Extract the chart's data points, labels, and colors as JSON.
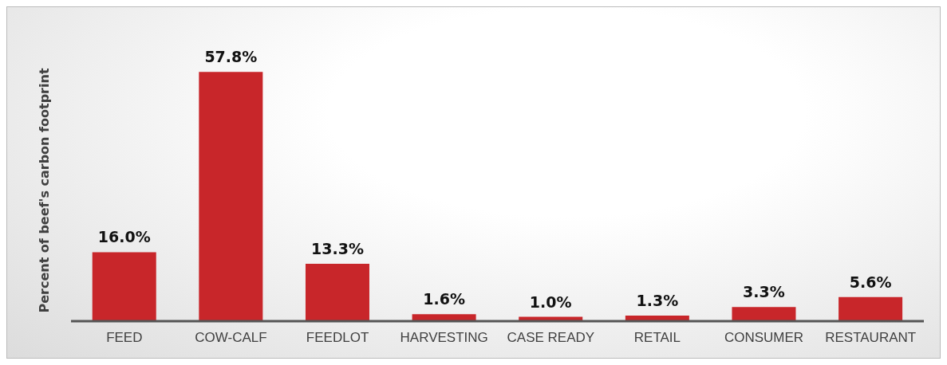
{
  "chart_data": {
    "type": "bar",
    "ylabel": "Percent of beef's carbon footprint",
    "categories": [
      "FEED",
      "COW-CALF",
      "FEEDLOT",
      "HARVESTING",
      "CASE READY",
      "RETAIL",
      "CONSUMER",
      "RESTAURANT"
    ],
    "values": [
      16.0,
      57.8,
      13.3,
      1.6,
      1.0,
      1.3,
      3.3,
      5.6
    ],
    "value_labels": [
      "16.0%",
      "57.8%",
      "13.3%",
      "1.6%",
      "1.0%",
      "1.3%",
      "3.3%",
      "5.6%"
    ],
    "color": "#c8262a",
    "grid": false,
    "legend": false
  }
}
